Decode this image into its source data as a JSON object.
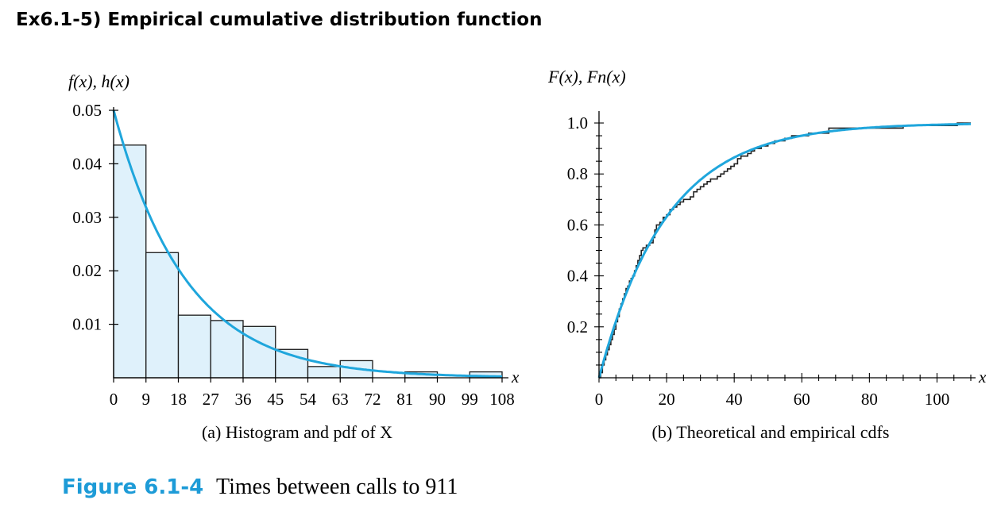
{
  "page": {
    "heading": "Ex6.1-5) Empirical cumulative distribution function",
    "figure_number": "Figure 6.1-4",
    "figure_caption": "Times between calls to 911"
  },
  "colors": {
    "curve": "#1fa6dc",
    "bar_fill": "#dff1fb",
    "bar_stroke": "#1a1a1a",
    "axis": "#000000",
    "step": "#222222",
    "figure_number": "#1d9bd7"
  },
  "chart_data": [
    {
      "type": "bar",
      "panel_caption": "(a) Histogram and pdf of X",
      "ylabel_parts": [
        "f(x), h(x)"
      ],
      "xlabel": "x",
      "xlim": [
        0,
        108
      ],
      "ylim": [
        0,
        0.05
      ],
      "x_ticks": [
        0,
        9,
        18,
        27,
        36,
        45,
        54,
        63,
        72,
        81,
        90,
        99,
        108
      ],
      "y_ticks": [
        0.01,
        0.02,
        0.03,
        0.04,
        0.05
      ],
      "y_tick_labels": [
        "0.01",
        "0.02",
        "0.03",
        "0.04",
        "0.05"
      ],
      "bins": [
        [
          0,
          9
        ],
        [
          9,
          18
        ],
        [
          18,
          27
        ],
        [
          27,
          36
        ],
        [
          36,
          45
        ],
        [
          45,
          54
        ],
        [
          54,
          63
        ],
        [
          63,
          72
        ],
        [
          72,
          81
        ],
        [
          81,
          90
        ],
        [
          90,
          99
        ],
        [
          99,
          108
        ]
      ],
      "values": [
        0.0435,
        0.0234,
        0.0117,
        0.0107,
        0.0096,
        0.0053,
        0.0021,
        0.0032,
        0,
        0.0011,
        0,
        0.0011
      ],
      "series": [
        {
          "kind": "curve",
          "description": "f(x) = (1/20) e^(-x/20)",
          "mean": 20,
          "x_range": [
            0,
            108
          ]
        }
      ],
      "grid": false,
      "legend": "none"
    },
    {
      "type": "line",
      "panel_caption": "(b) Theoretical and empirical cdfs",
      "ylabel": "F(x), Fn(x)",
      "xlabel": "x",
      "xlim": [
        0,
        110
      ],
      "ylim": [
        0,
        1.0
      ],
      "x_ticks": [
        0,
        20,
        40,
        60,
        80,
        100
      ],
      "y_ticks": [
        0.2,
        0.4,
        0.6,
        0.8,
        1.0
      ],
      "y_tick_labels": [
        "0.2",
        "0.4",
        "0.6",
        "0.8",
        "1.0"
      ],
      "series": [
        {
          "kind": "theoretical",
          "description": "F(x) = 1 - e^(-x/20)",
          "mean": 20,
          "x_range": [
            0,
            110
          ]
        },
        {
          "kind": "empirical_step",
          "points": [
            [
              0,
              0
            ],
            [
              0.5,
              0.02
            ],
            [
              1,
              0.05
            ],
            [
              1.5,
              0.07
            ],
            [
              2,
              0.09
            ],
            [
              2.5,
              0.11
            ],
            [
              3,
              0.13
            ],
            [
              3.5,
              0.15
            ],
            [
              4,
              0.17
            ],
            [
              4.5,
              0.19
            ],
            [
              5,
              0.22
            ],
            [
              5.5,
              0.24
            ],
            [
              6,
              0.27
            ],
            [
              6.5,
              0.29
            ],
            [
              7,
              0.31
            ],
            [
              7.5,
              0.33
            ],
            [
              8,
              0.35
            ],
            [
              8.5,
              0.36
            ],
            [
              9,
              0.38
            ],
            [
              9.5,
              0.39
            ],
            [
              10,
              0.4
            ],
            [
              10.5,
              0.42
            ],
            [
              11,
              0.44
            ],
            [
              11.5,
              0.46
            ],
            [
              12,
              0.48
            ],
            [
              12.5,
              0.5
            ],
            [
              13,
              0.51
            ],
            [
              14,
              0.52
            ],
            [
              15,
              0.53
            ],
            [
              16,
              0.55
            ],
            [
              16.5,
              0.58
            ],
            [
              17,
              0.6
            ],
            [
              18,
              0.61
            ],
            [
              19,
              0.63
            ],
            [
              20,
              0.64
            ],
            [
              21,
              0.66
            ],
            [
              22,
              0.67
            ],
            [
              23,
              0.68
            ],
            [
              24,
              0.69
            ],
            [
              25,
              0.7
            ],
            [
              27,
              0.71
            ],
            [
              28,
              0.73
            ],
            [
              29,
              0.74
            ],
            [
              30,
              0.75
            ],
            [
              31,
              0.76
            ],
            [
              32,
              0.77
            ],
            [
              33,
              0.78
            ],
            [
              35,
              0.79
            ],
            [
              36,
              0.8
            ],
            [
              37,
              0.81
            ],
            [
              38,
              0.82
            ],
            [
              39,
              0.83
            ],
            [
              40,
              0.84
            ],
            [
              41,
              0.86
            ],
            [
              42,
              0.87
            ],
            [
              44,
              0.88
            ],
            [
              45,
              0.89
            ],
            [
              46,
              0.9
            ],
            [
              48,
              0.91
            ],
            [
              50,
              0.92
            ],
            [
              52,
              0.93
            ],
            [
              55,
              0.94
            ],
            [
              57,
              0.95
            ],
            [
              62,
              0.96
            ],
            [
              68,
              0.98
            ],
            [
              80,
              0.98
            ],
            [
              90,
              0.99
            ],
            [
              106,
              1.0
            ],
            [
              110,
              1.0
            ]
          ]
        }
      ],
      "grid": false,
      "legend": "none"
    }
  ]
}
